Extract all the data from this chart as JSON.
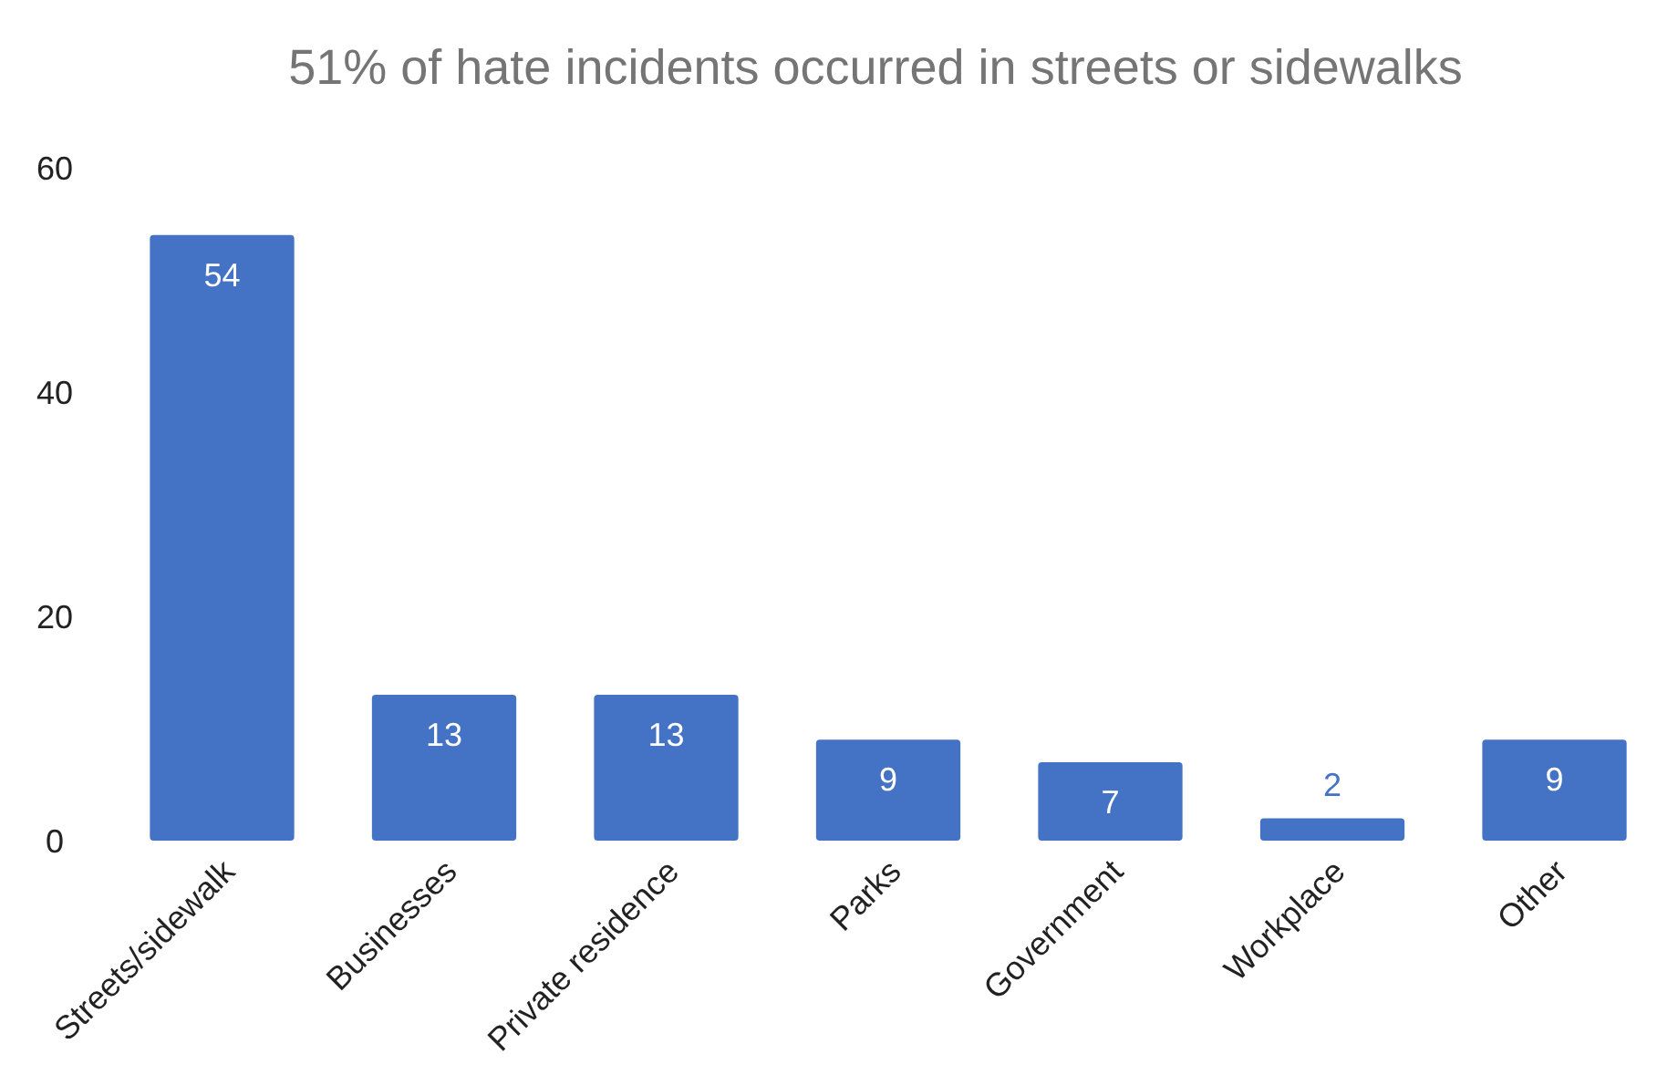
{
  "chart_data": {
    "type": "bar",
    "title": "51% of hate incidents occurred in streets or sidewalks",
    "categories": [
      "Streets/sidewalk",
      "Businesses",
      "Private residence",
      "Parks",
      "Government",
      "Workplace",
      "Other"
    ],
    "values": [
      54,
      13,
      13,
      9,
      7,
      2,
      9
    ],
    "color": "#4472c4",
    "ylim": [
      0,
      60
    ],
    "yticks": [
      0,
      20,
      40,
      60
    ],
    "grid": false,
    "data_labels": true
  }
}
